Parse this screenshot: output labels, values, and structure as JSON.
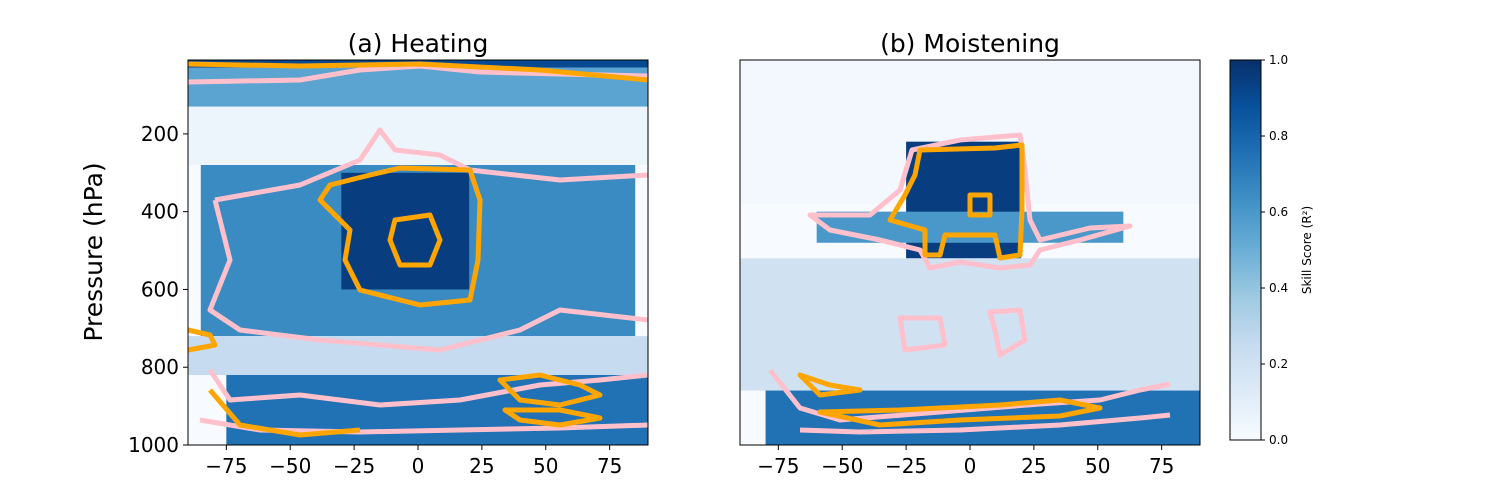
{
  "chart_data": [
    {
      "type": "heatmap",
      "title": "(a) Heating",
      "xlabel": "",
      "ylabel": "Pressure (hPa)",
      "xlim": [
        -90,
        90
      ],
      "ylim": [
        1000,
        10
      ],
      "xticks": [
        -75,
        -50,
        -25,
        0,
        25,
        50,
        75
      ],
      "yticks": [
        200,
        400,
        600,
        800,
        1000
      ],
      "xtick_labels": [
        "−75",
        "−50",
        "−25",
        "0",
        "25",
        "50",
        "75"
      ],
      "ytick_labels": [
        "200",
        "400",
        "600",
        "800",
        "1000"
      ],
      "grid": false,
      "contours": [
        {
          "level": 0.5,
          "color": "#ffc0cb"
        },
        {
          "level": 0.7,
          "color": "#ffa500"
        }
      ],
      "regions": [
        {
          "lat": [
            -90,
            90
          ],
          "p": [
            10,
            30
          ],
          "r2": 0.9
        },
        {
          "lat": [
            -90,
            90
          ],
          "p": [
            30,
            130
          ],
          "r2": 0.55
        },
        {
          "lat": [
            -90,
            90
          ],
          "p": [
            130,
            280
          ],
          "r2": 0.05
        },
        {
          "lat": [
            -85,
            85
          ],
          "p": [
            280,
            720
          ],
          "r2": 0.65
        },
        {
          "lat": [
            -30,
            20
          ],
          "p": [
            300,
            600
          ],
          "r2": 0.95
        },
        {
          "lat": [
            -90,
            90
          ],
          "p": [
            720,
            820
          ],
          "r2": 0.25
        },
        {
          "lat": [
            -75,
            90
          ],
          "p": [
            820,
            1000
          ],
          "r2": 0.75
        }
      ]
    },
    {
      "type": "heatmap",
      "title": "(b) Moistening",
      "xlabel": "",
      "ylabel": "",
      "xlim": [
        -90,
        90
      ],
      "ylim": [
        1000,
        10
      ],
      "xticks": [
        -75,
        -50,
        -25,
        0,
        25,
        50,
        75
      ],
      "xtick_labels": [
        "−75",
        "−50",
        "−25",
        "0",
        "25",
        "50",
        "75"
      ],
      "grid": false,
      "contours": [
        {
          "level": 0.5,
          "color": "#ffc0cb"
        },
        {
          "level": 0.7,
          "color": "#ffa500"
        }
      ],
      "regions": [
        {
          "lat": [
            -90,
            90
          ],
          "p": [
            10,
            380
          ],
          "r2": 0.02
        },
        {
          "lat": [
            -25,
            20
          ],
          "p": [
            220,
            520
          ],
          "r2": 0.95
        },
        {
          "lat": [
            -60,
            60
          ],
          "p": [
            400,
            480
          ],
          "r2": 0.6
        },
        {
          "lat": [
            -90,
            90
          ],
          "p": [
            520,
            860
          ],
          "r2": 0.2
        },
        {
          "lat": [
            -80,
            90
          ],
          "p": [
            860,
            1000
          ],
          "r2": 0.75
        }
      ]
    }
  ],
  "colorbar": {
    "label": "Skill Score (R²)",
    "range": [
      0.0,
      1.0
    ],
    "ticks": [
      "0.0",
      "0.2",
      "0.4",
      "0.6",
      "0.8",
      "1.0"
    ],
    "colormap": "Blues",
    "color_low": "#f7fbff",
    "color_high": "#08306b"
  }
}
